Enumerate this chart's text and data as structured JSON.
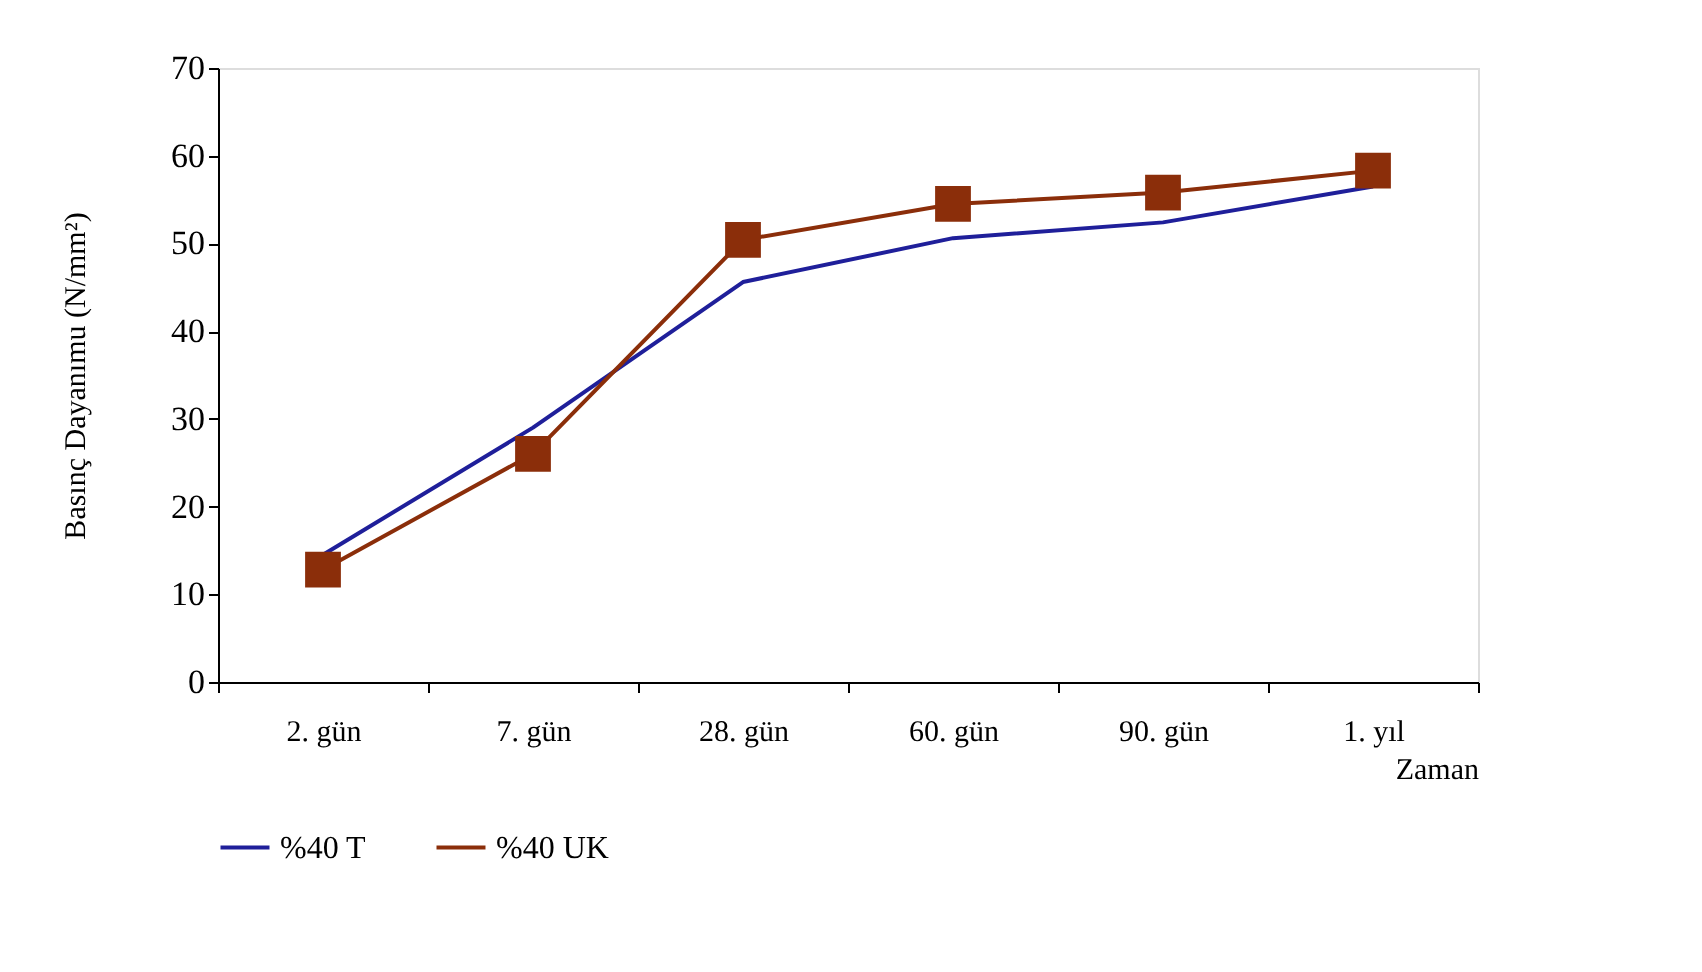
{
  "chart_data": {
    "type": "line",
    "xlabel": "Zaman",
    "ylabel": "Basınç Dayanımu (N/mm²)",
    "categories": [
      "2. gün",
      "7. gün",
      "28. gün",
      "60. gün",
      "90. gün",
      "1. yıl"
    ],
    "series": [
      {
        "name": "%40 T",
        "color": "#1f1f9a",
        "marker": "none",
        "values": [
          14.5,
          29,
          45.6,
          50.6,
          52.4,
          56.5
        ]
      },
      {
        "name": "%40 UK",
        "color": "#8b2e0a",
        "marker": "square",
        "values": [
          12.8,
          26,
          50.4,
          54.5,
          55.8,
          58.3
        ]
      }
    ],
    "ylim": [
      0,
      70
    ],
    "yticks": [
      0,
      10,
      20,
      30,
      40,
      50,
      60,
      70
    ],
    "grid": false,
    "legend": "bottom",
    "line_style": "solid"
  }
}
